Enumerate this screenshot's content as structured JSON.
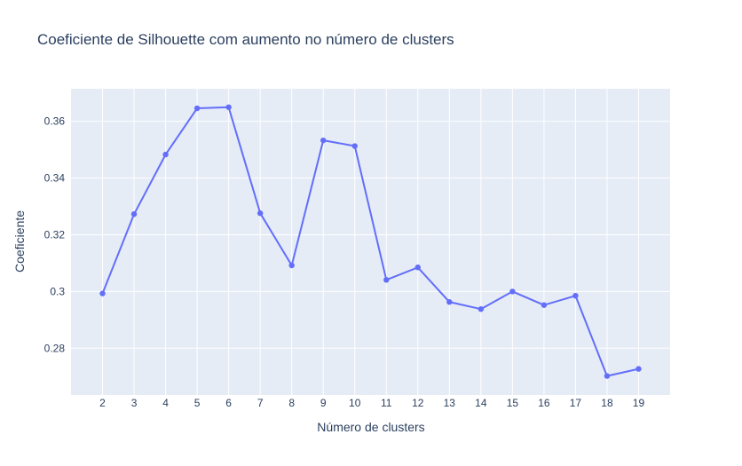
{
  "chart_data": {
    "type": "line",
    "title": "Coeficiente de Silhouette com aumento no número de clusters",
    "xlabel": "Número de clusters",
    "ylabel": "Coeficiente",
    "x": [
      2,
      3,
      4,
      5,
      6,
      7,
      8,
      9,
      10,
      11,
      12,
      13,
      14,
      15,
      16,
      17,
      18,
      19
    ],
    "series": [
      {
        "values": [
          0.2993,
          0.3273,
          0.3483,
          0.3646,
          0.365,
          0.3276,
          0.3092,
          0.3533,
          0.3513,
          0.3041,
          0.3085,
          0.2963,
          0.2938,
          0.3,
          0.2952,
          0.2985,
          0.2702,
          0.2727
        ]
      }
    ],
    "xlim": [
      1,
      20
    ],
    "ylim": [
      0.2635,
      0.3715
    ],
    "yticks": [
      0.28,
      0.3,
      0.32,
      0.34,
      0.36
    ],
    "ytick_labels": [
      "0.28",
      "0.3",
      "0.32",
      "0.34",
      "0.36"
    ],
    "grid": true,
    "colors": {
      "line": "#636efa",
      "plot_bg": "#e5ecf6",
      "grid": "#ffffff",
      "text": "#2a3f5f"
    }
  }
}
